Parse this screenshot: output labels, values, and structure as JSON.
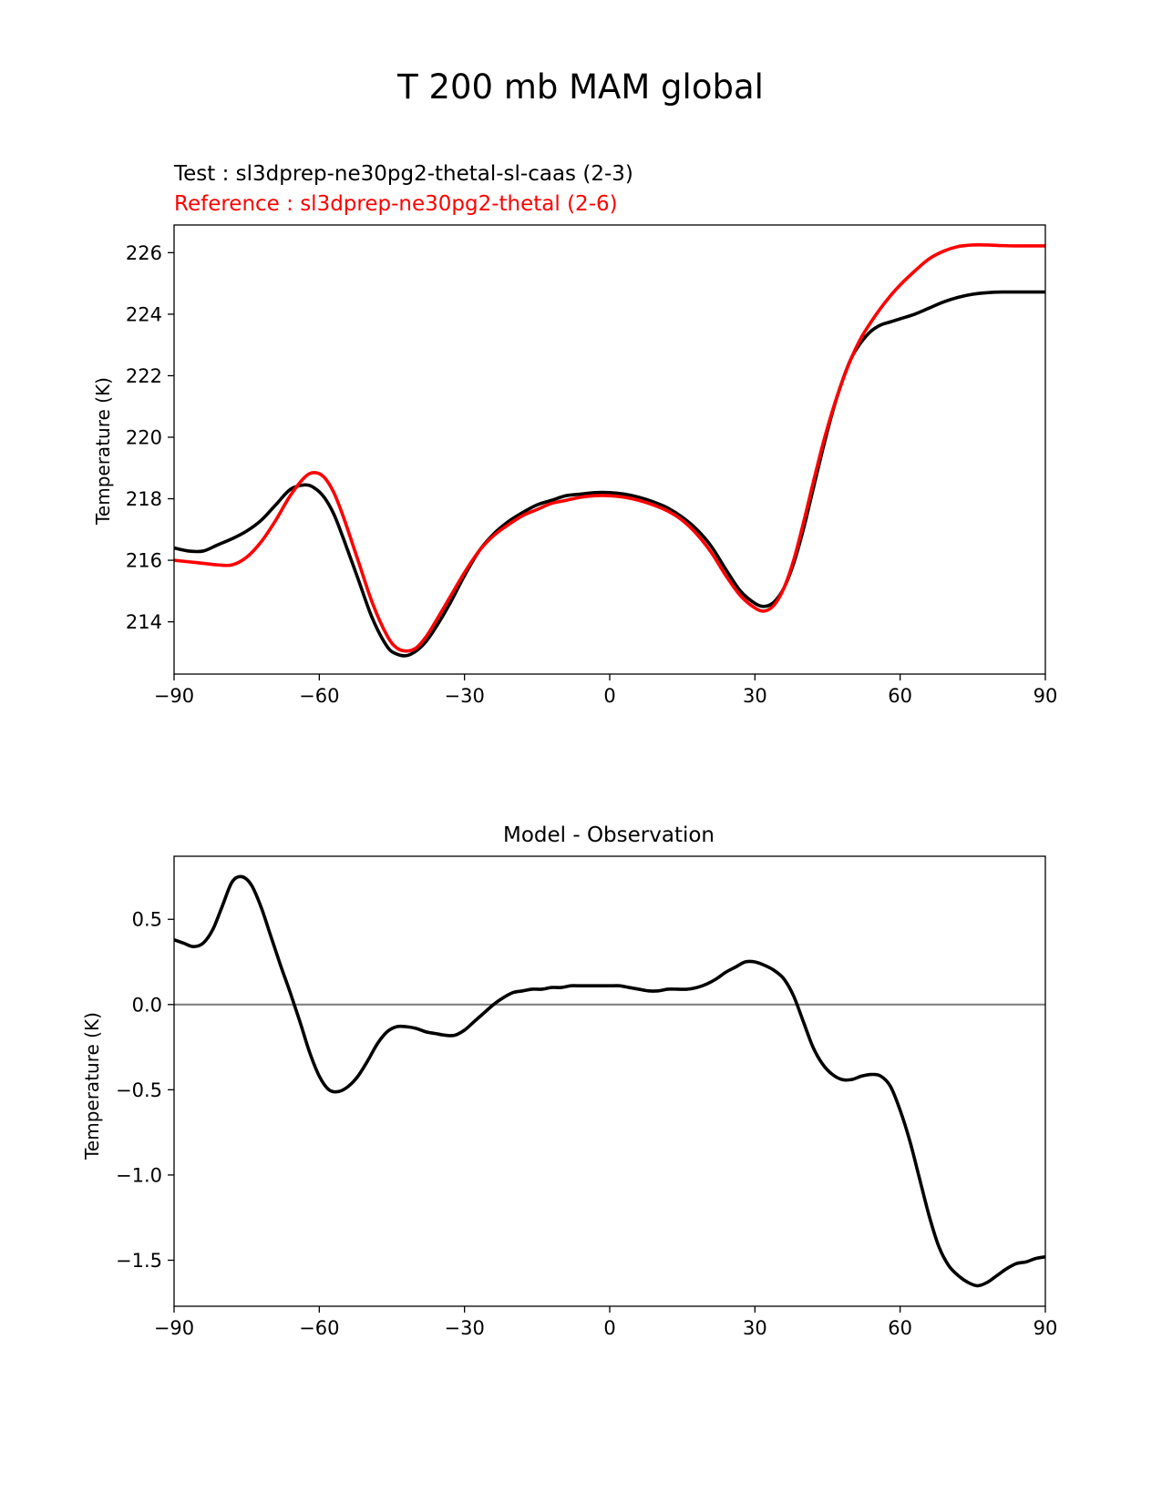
{
  "figure": {
    "title": "T 200 mb MAM global"
  },
  "chart_data": [
    {
      "type": "line",
      "title": "",
      "test_label": "Test : sl3dprep-ne30pg2-thetal-sl-caas (2-3)",
      "reference_label": "Reference : sl3dprep-ne30pg2-thetal (2-6)",
      "xlabel": "",
      "ylabel": "Temperature (K)",
      "xlim": [
        -90,
        90
      ],
      "ylim": [
        212.3,
        226.9
      ],
      "xticks": [
        -90,
        -60,
        -30,
        0,
        30,
        60,
        90
      ],
      "xtick_labels": [
        "−90",
        "−60",
        "−30",
        "0",
        "30",
        "60",
        "90"
      ],
      "yticks": [
        214,
        216,
        218,
        220,
        222,
        224,
        226
      ],
      "ytick_labels": [
        "214",
        "216",
        "218",
        "220",
        "222",
        "224",
        "226"
      ],
      "grid": false,
      "colors": {
        "test": "#000000",
        "reference": "#ff0000"
      },
      "series": [
        {
          "name": "Test",
          "color": "#000000",
          "x": [
            -90,
            -87,
            -84,
            -81,
            -78,
            -75,
            -72,
            -69,
            -66,
            -63,
            -61,
            -59,
            -57,
            -55,
            -52,
            -49,
            -46,
            -44,
            -42,
            -40,
            -38,
            -36,
            -33,
            -30,
            -27,
            -24,
            -21,
            -18,
            -15,
            -12,
            -9,
            -6,
            -3,
            0,
            3,
            6,
            9,
            12,
            15,
            18,
            21,
            24,
            27,
            30,
            32,
            34,
            36,
            38,
            40,
            42,
            44,
            46,
            48,
            50,
            52,
            54,
            56,
            58,
            60,
            63,
            66,
            69,
            72,
            75,
            78,
            81,
            84,
            87,
            90
          ],
          "y": [
            216.4,
            216.3,
            216.3,
            216.5,
            216.7,
            216.95,
            217.3,
            217.8,
            218.3,
            218.45,
            218.35,
            218.05,
            217.5,
            216.7,
            215.4,
            214.1,
            213.2,
            212.95,
            212.9,
            213.05,
            213.35,
            213.8,
            214.6,
            215.5,
            216.3,
            216.85,
            217.25,
            217.55,
            217.8,
            217.95,
            218.1,
            218.15,
            218.2,
            218.2,
            218.15,
            218.05,
            217.9,
            217.7,
            217.4,
            217.0,
            216.45,
            215.7,
            215.0,
            214.6,
            214.5,
            214.65,
            215.1,
            215.9,
            217.0,
            218.3,
            219.6,
            220.8,
            221.8,
            222.6,
            223.1,
            223.45,
            223.65,
            223.75,
            223.85,
            224.0,
            224.2,
            224.4,
            224.55,
            224.65,
            224.7,
            224.72,
            224.72,
            224.72,
            224.72
          ]
        },
        {
          "name": "Reference",
          "color": "#ff0000",
          "x": [
            -90,
            -87,
            -84,
            -81,
            -78,
            -75,
            -72,
            -69,
            -66,
            -63,
            -61,
            -59,
            -57,
            -55,
            -52,
            -49,
            -46,
            -44,
            -42,
            -40,
            -38,
            -36,
            -33,
            -30,
            -27,
            -24,
            -21,
            -18,
            -15,
            -12,
            -9,
            -6,
            -3,
            0,
            3,
            6,
            9,
            12,
            15,
            18,
            21,
            24,
            27,
            30,
            32,
            34,
            36,
            38,
            40,
            42,
            44,
            46,
            48,
            50,
            52,
            54,
            56,
            58,
            60,
            63,
            66,
            69,
            72,
            75,
            78,
            81,
            84,
            87,
            90
          ],
          "y": [
            216.0,
            215.95,
            215.9,
            215.85,
            215.85,
            216.1,
            216.6,
            217.3,
            218.1,
            218.7,
            218.85,
            218.7,
            218.2,
            217.4,
            216.0,
            214.6,
            213.55,
            213.15,
            213.05,
            213.15,
            213.5,
            214.0,
            214.8,
            215.6,
            216.3,
            216.8,
            217.15,
            217.45,
            217.65,
            217.85,
            217.95,
            218.05,
            218.1,
            218.1,
            218.05,
            217.95,
            217.8,
            217.6,
            217.3,
            216.85,
            216.25,
            215.5,
            214.85,
            214.45,
            214.35,
            214.55,
            215.1,
            216.0,
            217.2,
            218.5,
            219.75,
            220.85,
            221.8,
            222.6,
            223.25,
            223.75,
            224.2,
            224.6,
            224.95,
            225.4,
            225.8,
            226.05,
            226.2,
            226.25,
            226.25,
            226.23,
            226.22,
            226.22,
            226.22
          ]
        }
      ]
    },
    {
      "type": "line",
      "title": "Model - Observation",
      "xlabel": "",
      "ylabel": "Temperature (K)",
      "xlim": [
        -90,
        90
      ],
      "ylim": [
        -1.77,
        0.87
      ],
      "xticks": [
        -90,
        -60,
        -30,
        0,
        30,
        60,
        90
      ],
      "xtick_labels": [
        "−90",
        "−60",
        "−30",
        "0",
        "30",
        "60",
        "90"
      ],
      "yticks": [
        -1.5,
        -1.0,
        -0.5,
        0.0,
        0.5
      ],
      "ytick_labels": [
        "−1.5",
        "−1.0",
        "−0.5",
        "0.0",
        "0.5"
      ],
      "grid": false,
      "zero_line_color": "#808080",
      "series": [
        {
          "color": "#000000",
          "x": [
            -90,
            -88,
            -86,
            -84,
            -82,
            -80,
            -78,
            -76,
            -74,
            -72,
            -70,
            -68,
            -66,
            -64,
            -62,
            -60,
            -58,
            -56,
            -54,
            -52,
            -50,
            -48,
            -46,
            -44,
            -42,
            -40,
            -38,
            -36,
            -34,
            -32,
            -30,
            -28,
            -26,
            -24,
            -22,
            -20,
            -18,
            -16,
            -14,
            -12,
            -10,
            -8,
            -6,
            -4,
            -2,
            0,
            2,
            4,
            6,
            8,
            10,
            12,
            14,
            16,
            18,
            20,
            22,
            24,
            26,
            28,
            30,
            32,
            34,
            36,
            38,
            40,
            42,
            44,
            46,
            48,
            50,
            52,
            54,
            56,
            58,
            60,
            62,
            64,
            66,
            68,
            70,
            72,
            74,
            76,
            78,
            80,
            82,
            84,
            86,
            88,
            90
          ],
          "y": [
            0.38,
            0.36,
            0.34,
            0.36,
            0.44,
            0.58,
            0.72,
            0.75,
            0.7,
            0.57,
            0.4,
            0.23,
            0.07,
            -0.1,
            -0.28,
            -0.42,
            -0.5,
            -0.51,
            -0.48,
            -0.42,
            -0.33,
            -0.23,
            -0.16,
            -0.13,
            -0.13,
            -0.14,
            -0.16,
            -0.17,
            -0.18,
            -0.18,
            -0.15,
            -0.1,
            -0.05,
            0.0,
            0.04,
            0.07,
            0.08,
            0.09,
            0.09,
            0.1,
            0.1,
            0.11,
            0.11,
            0.11,
            0.11,
            0.11,
            0.11,
            0.1,
            0.09,
            0.08,
            0.08,
            0.09,
            0.09,
            0.09,
            0.1,
            0.12,
            0.15,
            0.19,
            0.22,
            0.25,
            0.25,
            0.23,
            0.2,
            0.15,
            0.05,
            -0.1,
            -0.25,
            -0.35,
            -0.41,
            -0.44,
            -0.44,
            -0.42,
            -0.41,
            -0.42,
            -0.48,
            -0.62,
            -0.8,
            -1.02,
            -1.24,
            -1.42,
            -1.53,
            -1.59,
            -1.63,
            -1.65,
            -1.63,
            -1.59,
            -1.55,
            -1.52,
            -1.51,
            -1.49,
            -1.48
          ]
        }
      ]
    }
  ]
}
